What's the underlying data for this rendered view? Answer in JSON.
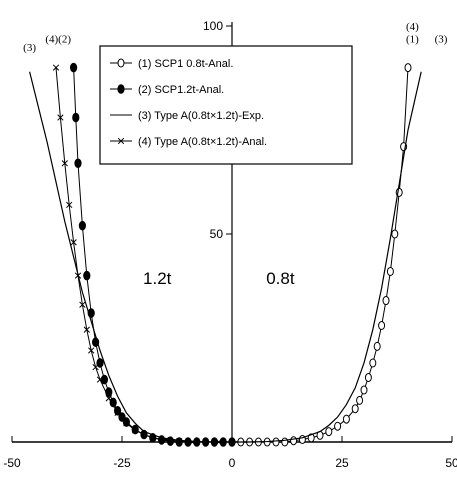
{
  "chart_data": {
    "type": "line",
    "title": "",
    "xlabel": "",
    "ylabel": "",
    "xlim": [
      -50,
      50
    ],
    "ylim": [
      0,
      100
    ],
    "x_ticks": [
      {
        "value": -50,
        "label": "-50"
      },
      {
        "value": -25,
        "label": "-25"
      },
      {
        "value": 0,
        "label": "0"
      },
      {
        "value": 25,
        "label": "25"
      },
      {
        "value": 50,
        "label": "50"
      }
    ],
    "y_ticks": [
      {
        "value": 0,
        "label": "0"
      },
      {
        "value": 50,
        "label": "50"
      },
      {
        "value": 100,
        "label": "100"
      }
    ],
    "grid": false,
    "legend_position": "top-center",
    "region_labels": [
      {
        "text": "1.2t",
        "x": -17,
        "y": 38
      },
      {
        "text": "0.8t",
        "x": 11,
        "y": 38
      }
    ],
    "curve_labels": [
      {
        "text": "(3)",
        "x": -46,
        "y": 94
      },
      {
        "text": "(4)(2)",
        "x": -39.5,
        "y": 96
      },
      {
        "text": "(4)",
        "x": 41,
        "y": 99
      },
      {
        "text": "(1)",
        "x": 41,
        "y": 96
      },
      {
        "text": "(3)",
        "x": 47.5,
        "y": 96
      }
    ],
    "series": [
      {
        "name": "(1) SCP1 0.8t-Anal.",
        "marker": "open-circle",
        "x": [
          0,
          2,
          4,
          6,
          8,
          10,
          12,
          14,
          16,
          18,
          20,
          22,
          24,
          26,
          28,
          29,
          30,
          31,
          32,
          33,
          34,
          35,
          36,
          37,
          38,
          39,
          40
        ],
        "y": [
          0,
          0,
          0,
          0,
          0,
          0,
          0,
          0.3,
          0.6,
          1,
          1.6,
          2.5,
          3.8,
          5.5,
          8,
          10,
          12.5,
          15.5,
          19,
          23,
          28,
          34,
          41,
          50,
          60,
          71,
          90
        ]
      },
      {
        "name": "(2) SCP1.2t-Anal.",
        "marker": "filled-circle",
        "x": [
          0,
          -2,
          -4,
          -6,
          -8,
          -10,
          -12,
          -14,
          -16,
          -18,
          -20,
          -22,
          -24,
          -25,
          -26,
          -27,
          -28,
          -29,
          -30,
          -31,
          -32,
          -33,
          -34,
          -35,
          -35.5,
          -36
        ],
        "y": [
          0,
          0,
          0,
          0,
          0,
          0,
          0,
          0.2,
          0.5,
          1,
          1.8,
          3,
          4.8,
          6,
          7.5,
          9.5,
          12,
          15,
          19,
          24,
          31,
          40,
          52,
          67,
          78,
          90
        ]
      },
      {
        "name": "(3) Type A(0.8t×1.2t)-Exp.",
        "marker": "none",
        "x": [
          -46,
          -42,
          -38,
          -34,
          -30,
          -28,
          -26,
          -24,
          -22,
          -20,
          -16,
          -12,
          -8,
          -4,
          0,
          4,
          8,
          12,
          16,
          20,
          22,
          24,
          26,
          28,
          30,
          32,
          34,
          36,
          38,
          40,
          43
        ],
        "y": [
          89,
          72,
          53,
          36,
          22,
          16,
          11,
          7,
          4.5,
          2.5,
          1,
          0.4,
          0.1,
          0,
          0,
          0,
          0.1,
          0.4,
          1,
          2.5,
          4,
          6,
          9,
          13,
          19,
          27,
          37,
          49,
          62,
          75,
          89
        ]
      },
      {
        "name": "(4) Type A(0.8t×1.2t)-Anal.",
        "marker": "x-cross",
        "x": [
          0,
          -3,
          -6,
          -9,
          -12,
          -15,
          -18,
          -20,
          -22,
          -24,
          -26,
          -28,
          -30,
          -31,
          -32,
          -33,
          -34,
          -35,
          -36,
          -37,
          -38,
          -39,
          -40
        ],
        "y": [
          0,
          0,
          0,
          0,
          0.2,
          0.5,
          1,
          1.8,
          2.8,
          4.5,
          7,
          10.5,
          15,
          18,
          22,
          27,
          33,
          40,
          48,
          57,
          67,
          78,
          90
        ]
      }
    ]
  }
}
